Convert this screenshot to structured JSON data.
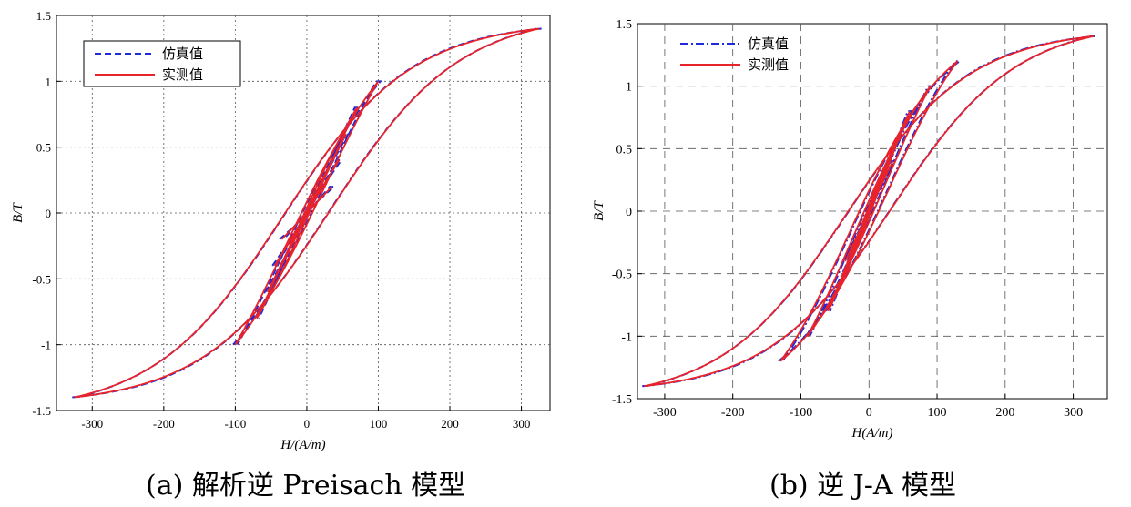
{
  "chart_data": [
    {
      "type": "line",
      "panel": "a",
      "caption": "(a) 解析逆 Preisach 模型",
      "xlabel": "H/(A/m)",
      "ylabel": "B/T",
      "xlim": [
        -350,
        340
      ],
      "ylim": [
        -1.5,
        1.5
      ],
      "xticks": [
        -300,
        -200,
        -100,
        0,
        100,
        200,
        300
      ],
      "yticks": [
        -1.5,
        -1,
        -0.5,
        0,
        0.5,
        1,
        1.5
      ],
      "xtick_labels": [
        "-300",
        "-200",
        "-100",
        "0",
        "100",
        "200",
        "300"
      ],
      "ytick_labels": [
        "-1.5",
        "-1",
        "-0.5",
        "0",
        "0.5",
        "1",
        "1.5"
      ],
      "grid": "dotted",
      "legend": {
        "position": "top-left",
        "entries": [
          "仿真值",
          "实测值"
        ]
      },
      "series": [
        {
          "name": "仿真值",
          "style": "dashed",
          "color": "#1f2bd8"
        },
        {
          "name": "实测值",
          "style": "solid",
          "color": "#e8232a"
        }
      ],
      "loops": [
        {
          "Hm": 325,
          "Bm": 1.4,
          "Hc": 34
        },
        {
          "Hm": 100,
          "Bm": 1.0,
          "Hc": 26
        },
        {
          "Hm": 70,
          "Bm": 0.8,
          "Hc": 20
        },
        {
          "Hm": 55,
          "Bm": 0.6,
          "Hc": 15
        },
        {
          "Hm": 45,
          "Bm": 0.4,
          "Hc": 11
        },
        {
          "Hm": 35,
          "Bm": 0.2,
          "Hc": 7
        }
      ]
    },
    {
      "type": "line",
      "panel": "b",
      "caption": "(b) 逆 J-A 模型",
      "xlabel": "H(A/m)",
      "ylabel": "B/T",
      "xlim": [
        -340,
        350
      ],
      "ylim": [
        -1.5,
        1.5
      ],
      "xticks": [
        -300,
        -200,
        -100,
        0,
        100,
        200,
        300
      ],
      "yticks": [
        -1.5,
        -1,
        -0.5,
        0,
        0.5,
        1,
        1.5
      ],
      "xtick_labels": [
        "-300",
        "-200",
        "-100",
        "0",
        "100",
        "200",
        "300"
      ],
      "ytick_labels": [
        "-1.5",
        "-1",
        "-0.5",
        "0",
        "0.5",
        "1",
        "1.5"
      ],
      "grid": "dashed",
      "legend": {
        "position": "top-left",
        "entries": [
          "仿真值",
          "实测值"
        ]
      },
      "series": [
        {
          "name": "仿真值",
          "style": "dash-dot",
          "color": "#1f2bd8"
        },
        {
          "name": "实测值",
          "style": "solid",
          "color": "#e8232a"
        }
      ],
      "loops": [
        {
          "Hm": 330,
          "Bm": 1.4,
          "Hc": 34
        },
        {
          "Hm": 130,
          "Bm": 1.2,
          "Hc": 28
        },
        {
          "Hm": 90,
          "Bm": 1.0,
          "Hc": 24
        },
        {
          "Hm": 60,
          "Bm": 0.8,
          "Hc": 19
        },
        {
          "Hm": 45,
          "Bm": 0.6,
          "Hc": 15
        },
        {
          "Hm": 35,
          "Bm": 0.4,
          "Hc": 11
        }
      ]
    }
  ],
  "captions": {
    "a": "(a) 解析逆 Preisach 模型",
    "b": "(b) 逆 J-A 模型"
  }
}
